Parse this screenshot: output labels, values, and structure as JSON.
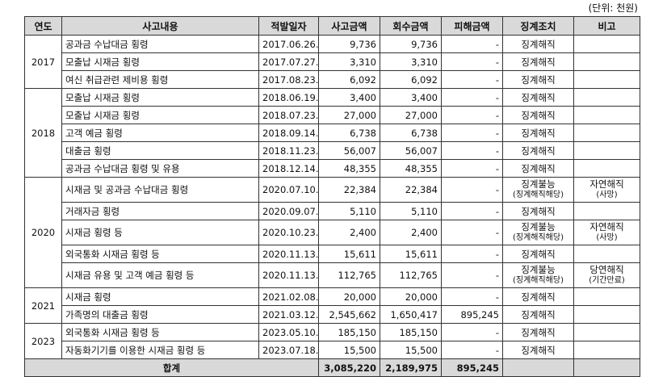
{
  "unit_note": "(단위: 천원)",
  "headers": [
    "연도",
    "사고내용",
    "적발일자",
    "사고금액",
    "회수금액",
    "피해금액",
    "징계조치",
    "비고"
  ],
  "groups": [
    {
      "year": "2017",
      "rows": [
        {
          "content": "공과금 수납대금 횡령",
          "date": "2017.06.26.",
          "amount": "9,736",
          "recovered": "9,736",
          "damage": "-",
          "action": "징계해직",
          "action_sub": "",
          "note": "",
          "note_sub": ""
        },
        {
          "content": "모출납 시재금 횡령",
          "date": "2017.07.27.",
          "amount": "3,310",
          "recovered": "3,310",
          "damage": "-",
          "action": "징계해직",
          "action_sub": "",
          "note": "",
          "note_sub": ""
        },
        {
          "content": "여신 취급관련 제비용 횡령",
          "date": "2017.08.23.",
          "amount": "6,092",
          "recovered": "6,092",
          "damage": "-",
          "action": "징계해직",
          "action_sub": "",
          "note": "",
          "note_sub": ""
        }
      ]
    },
    {
      "year": "2018",
      "rows": [
        {
          "content": "모출납 시재금 횡령",
          "date": "2018.06.19.",
          "amount": "3,400",
          "recovered": "3,400",
          "damage": "-",
          "action": "징계해직",
          "action_sub": "",
          "note": "",
          "note_sub": ""
        },
        {
          "content": "모출납 시재금 횡령",
          "date": "2018.07.23.",
          "amount": "27,000",
          "recovered": "27,000",
          "damage": "-",
          "action": "징계해직",
          "action_sub": "",
          "note": "",
          "note_sub": ""
        },
        {
          "content": "고객 예금 횡령",
          "date": "2018.09.14.",
          "amount": "6,738",
          "recovered": "6,738",
          "damage": "-",
          "action": "징계해직",
          "action_sub": "",
          "note": "",
          "note_sub": ""
        },
        {
          "content": "대출금 횡령",
          "date": "2018.11.23.",
          "amount": "56,007",
          "recovered": "56,007",
          "damage": "-",
          "action": "징계해직",
          "action_sub": "",
          "note": "",
          "note_sub": ""
        },
        {
          "content": "공과금 수납대금 횡령 및 유용",
          "date": "2018.12.14.",
          "amount": "48,355",
          "recovered": "48,355",
          "damage": "-",
          "action": "징계해직",
          "action_sub": "",
          "note": "",
          "note_sub": ""
        }
      ]
    },
    {
      "year": "2020",
      "rows": [
        {
          "content": "시재금 및 공과금 수납대금 횡령",
          "date": "2020.07.10.",
          "amount": "22,384",
          "recovered": "22,384",
          "damage": "-",
          "action": "징계불능",
          "action_sub": "(징계해직해당)",
          "note": "자연해직",
          "note_sub": "(사망)"
        },
        {
          "content": "거래자금 횡령",
          "date": "2020.09.07.",
          "amount": "5,110",
          "recovered": "5,110",
          "damage": "-",
          "action": "징계해직",
          "action_sub": "",
          "note": "",
          "note_sub": ""
        },
        {
          "content": "시재금 횡령 등",
          "date": "2020.10.23.",
          "amount": "2,400",
          "recovered": "2,400",
          "damage": "-",
          "action": "징계불능",
          "action_sub": "(징계해직해당)",
          "note": "자연해직",
          "note_sub": "(사망)"
        },
        {
          "content": "외국통화 시재금 횡령 등",
          "date": "2020.11.13.",
          "amount": "15,611",
          "recovered": "15,611",
          "damage": "-",
          "action": "징계해직",
          "action_sub": "",
          "note": "",
          "note_sub": ""
        },
        {
          "content": "시재금 유용 및 고객 예금 횡령 등",
          "date": "2020.11.13.",
          "amount": "112,765",
          "recovered": "112,765",
          "damage": "-",
          "action": "징계불능",
          "action_sub": "(징계해직해당)",
          "note": "당연해직",
          "note_sub": "(기간만료)"
        }
      ]
    },
    {
      "year": "2021",
      "rows": [
        {
          "content": "시재금 횡령",
          "date": "2021.02.08.",
          "amount": "20,000",
          "recovered": "20,000",
          "damage": "-",
          "action": "징계해직",
          "action_sub": "",
          "note": "",
          "note_sub": ""
        },
        {
          "content": "가족명의 대출금 횡령",
          "date": "2021.03.12.",
          "amount": "2,545,662",
          "recovered": "1,650,417",
          "damage": "895,245",
          "action": "징계해직",
          "action_sub": "",
          "note": "",
          "note_sub": ""
        }
      ]
    },
    {
      "year": "2023",
      "rows": [
        {
          "content": "외국통화 시재금 횡령 등",
          "date": "2023.05.10.",
          "amount": "185,150",
          "recovered": "185,150",
          "damage": "-",
          "action": "징계해직",
          "action_sub": "",
          "note": "",
          "note_sub": ""
        },
        {
          "content": "자동화기기를 이용한 시재금 횡령 등",
          "date": "2023.07.18.",
          "amount": "15,500",
          "recovered": "15,500",
          "damage": "-",
          "action": "징계해직",
          "action_sub": "",
          "note": "",
          "note_sub": ""
        }
      ]
    }
  ],
  "total": {
    "label": "합계",
    "amount": "3,085,220",
    "recovered": "2,189,975",
    "damage": "895,245"
  }
}
